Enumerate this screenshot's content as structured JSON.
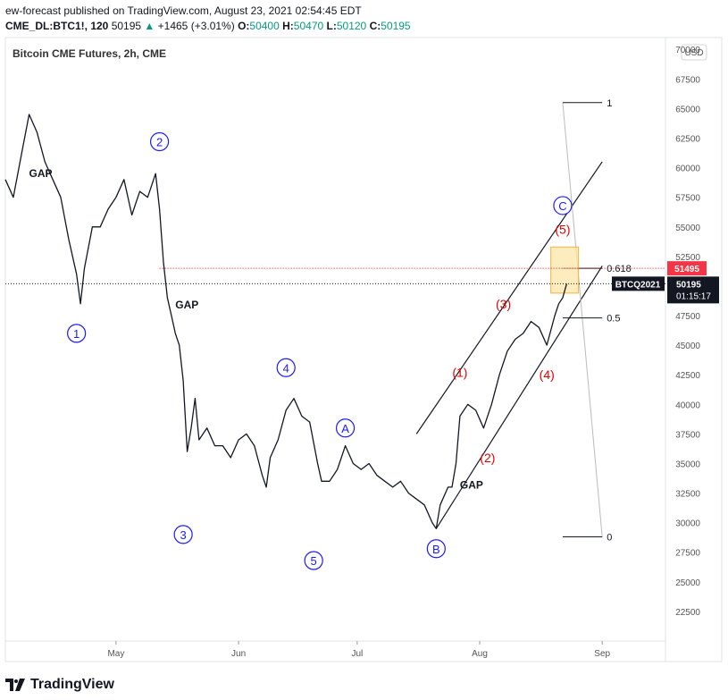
{
  "header": {
    "published_line": "ew-forecast published on TradingView.com, August 23, 2021 02:54:45 EDT",
    "symbol": "CME_DL:BTC1!, 120",
    "last": "50195",
    "change": "+1465 (+3.01%)",
    "open_label": "O:",
    "open": "50400",
    "high_label": "H:",
    "high": "50470",
    "low_label": "L:",
    "low": "50120",
    "close_label": "C:",
    "close": "50195"
  },
  "footer": {
    "brand": "TradingView"
  },
  "colors": {
    "price": "#131722",
    "wave_blue": "#1a1aff",
    "wave_red": "#e60000",
    "last_price_bg": "#131722",
    "level_bg": "#f23645",
    "target_box": "#fbe6a8",
    "target_box_border": "#f0b43c",
    "grid_text": "#555555"
  },
  "chart_data": {
    "type": "line",
    "title": "Bitcoin CME Futures, 2h, CME",
    "currency_button": "USD",
    "ylim": [
      20000,
      71000
    ],
    "y_ticks": [
      22500,
      25000,
      27500,
      30000,
      32500,
      35000,
      37500,
      40000,
      42500,
      45000,
      47500,
      50000,
      52500,
      55000,
      57500,
      60000,
      62500,
      65000,
      67500,
      70000
    ],
    "x_ticks": [
      "May",
      "Jun",
      "Jul",
      "Aug",
      "Sep"
    ],
    "x_tick_dates": [
      "2021-05-01",
      "2021-06-01",
      "2021-07-01",
      "2021-08-01",
      "2021-09-01"
    ],
    "xlim": [
      "2021-04-03",
      "2021-09-17"
    ],
    "series": [
      {
        "x": [
          "2021-04-03",
          "2021-04-05",
          "2021-04-07",
          "2021-04-09",
          "2021-04-11",
          "2021-04-13",
          "2021-04-15",
          "2021-04-17",
          "2021-04-19",
          "2021-04-21",
          "2021-04-22",
          "2021-04-23",
          "2021-04-25",
          "2021-04-27",
          "2021-04-29",
          "2021-05-01",
          "2021-05-03",
          "2021-05-05",
          "2021-05-07",
          "2021-05-09",
          "2021-05-11",
          "2021-05-12",
          "2021-05-13",
          "2021-05-14",
          "2021-05-15",
          "2021-05-16",
          "2021-05-17",
          "2021-05-18",
          "2021-05-19",
          "2021-05-20",
          "2021-05-21",
          "2021-05-22",
          "2021-05-24",
          "2021-05-26",
          "2021-05-28",
          "2021-05-30",
          "2021-06-01",
          "2021-06-03",
          "2021-06-05",
          "2021-06-07",
          "2021-06-08",
          "2021-06-09",
          "2021-06-11",
          "2021-06-13",
          "2021-06-15",
          "2021-06-17",
          "2021-06-19",
          "2021-06-21",
          "2021-06-22",
          "2021-06-24",
          "2021-06-26",
          "2021-06-28",
          "2021-06-30",
          "2021-07-02",
          "2021-07-04",
          "2021-07-06",
          "2021-07-08",
          "2021-07-10",
          "2021-07-12",
          "2021-07-14",
          "2021-07-16",
          "2021-07-18",
          "2021-07-20",
          "2021-07-21",
          "2021-07-22",
          "2021-07-24",
          "2021-07-25",
          "2021-07-26",
          "2021-07-27",
          "2021-07-29",
          "2021-07-31",
          "2021-08-02",
          "2021-08-04",
          "2021-08-06",
          "2021-08-08",
          "2021-08-10",
          "2021-08-12",
          "2021-08-14",
          "2021-08-16",
          "2021-08-18",
          "2021-08-20",
          "2021-08-21",
          "2021-08-22",
          "2021-08-23"
        ],
        "values": [
          59000,
          57500,
          61000,
          64500,
          63000,
          60500,
          59000,
          57500,
          54000,
          51000,
          48500,
          51500,
          55000,
          55000,
          56500,
          57500,
          59000,
          56000,
          58000,
          57500,
          59500,
          56500,
          52000,
          49000,
          47500,
          46000,
          45000,
          42000,
          36000,
          38000,
          40500,
          37000,
          38000,
          36500,
          36500,
          35500,
          37000,
          37500,
          36500,
          34000,
          33000,
          35500,
          37000,
          39500,
          40500,
          39000,
          38500,
          35000,
          33500,
          33500,
          34500,
          36500,
          35000,
          34500,
          35000,
          34000,
          33500,
          33000,
          33500,
          32500,
          32000,
          31500,
          30000,
          29500,
          31500,
          33000,
          33000,
          35000,
          39000,
          40000,
          39500,
          38000,
          40000,
          42500,
          44500,
          45500,
          46000,
          47000,
          46500,
          45000,
          47500,
          48500,
          49000,
          50195
        ]
      }
    ],
    "last_price_label": "50195",
    "last_price_countdown": "01:15:17",
    "symbol_tag": "BTCQ2021",
    "level_price_label": "51495",
    "fib_levels": [
      {
        "label": "1",
        "value": 65500
      },
      {
        "label": "0.618",
        "value": 51500
      },
      {
        "label": "0.5",
        "value": 47300
      },
      {
        "label": "0",
        "value": 28800
      }
    ],
    "wave_labels": [
      {
        "label": "1",
        "style": "circle",
        "color": "blue",
        "date": "2021-04-21",
        "value": 46000
      },
      {
        "label": "2",
        "style": "circle",
        "color": "blue",
        "date": "2021-05-12",
        "value": 62200
      },
      {
        "label": "3",
        "style": "circle",
        "color": "blue",
        "date": "2021-05-18",
        "value": 29000
      },
      {
        "label": "4",
        "style": "circle",
        "color": "blue",
        "date": "2021-06-13",
        "value": 43100
      },
      {
        "label": "5",
        "style": "circle",
        "color": "blue",
        "date": "2021-06-20",
        "value": 26800
      },
      {
        "label": "A",
        "style": "circle",
        "color": "blue",
        "date": "2021-06-28",
        "value": 38000
      },
      {
        "label": "B",
        "style": "circle",
        "color": "blue",
        "date": "2021-07-21",
        "value": 27800
      },
      {
        "label": "C",
        "style": "circle",
        "color": "blue",
        "date": "2021-08-22",
        "value": 56800
      },
      {
        "label": "(1)",
        "style": "paren",
        "color": "red",
        "date": "2021-07-27",
        "value": 42700
      },
      {
        "label": "(2)",
        "style": "paren",
        "color": "red",
        "date": "2021-08-03",
        "value": 35500
      },
      {
        "label": "(3)",
        "style": "paren",
        "color": "red",
        "date": "2021-08-07",
        "value": 48500
      },
      {
        "label": "(4)",
        "style": "paren",
        "color": "red",
        "date": "2021-08-18",
        "value": 42500
      },
      {
        "label": "(5)",
        "style": "paren",
        "color": "red",
        "date": "2021-08-22",
        "value": 54800
      }
    ],
    "annotations": [
      {
        "text": "GAP",
        "date": "2021-04-09",
        "value": 59200
      },
      {
        "text": "GAP",
        "date": "2021-05-16",
        "value": 48100
      },
      {
        "text": "GAP",
        "date": "2021-07-27",
        "value": 32900
      }
    ],
    "channel": {
      "upper": {
        "from": [
          "2021-07-16",
          37500
        ],
        "to": [
          "2021-09-01",
          60500
        ]
      },
      "lower": {
        "from": [
          "2021-07-21",
          29500
        ],
        "to": [
          "2021-09-01",
          51700
        ]
      }
    },
    "target_zone": {
      "from_date": "2021-08-19",
      "to_date": "2021-08-26",
      "low": 49400,
      "high": 53300
    },
    "grid": false,
    "legend": "none"
  }
}
